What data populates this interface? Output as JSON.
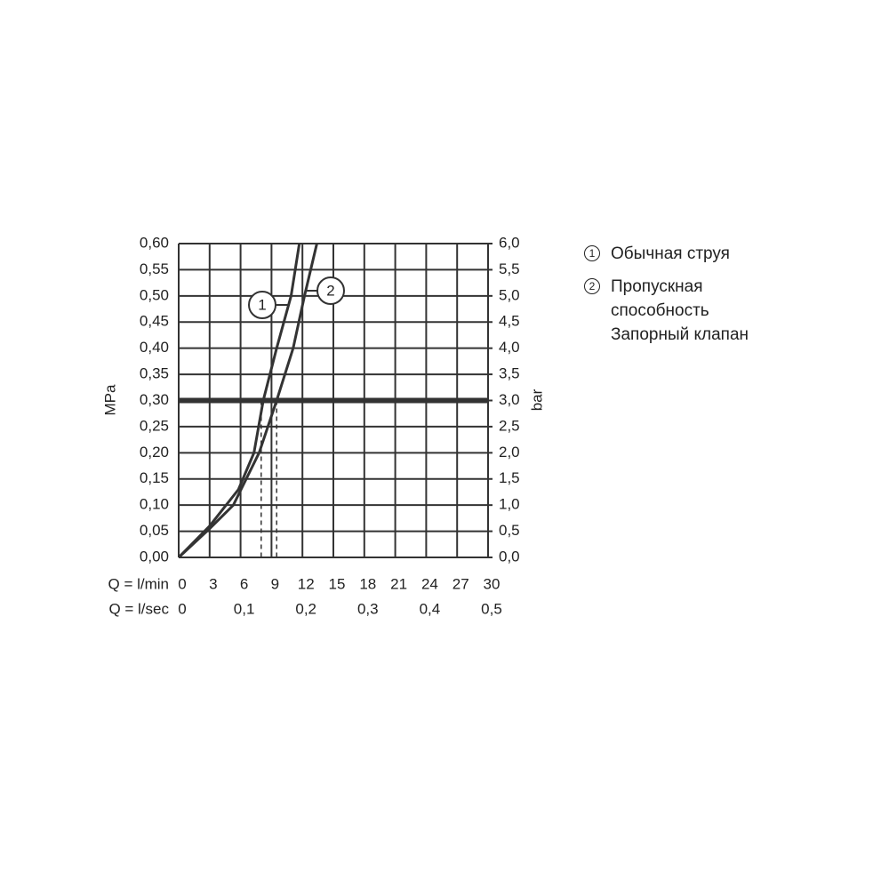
{
  "chart_data": {
    "type": "line",
    "xlabel": "Q = l/min",
    "x2label": "Q = l/sec",
    "ylabel": "MPa",
    "y2label": "bar",
    "xlim": [
      0,
      30
    ],
    "xticks": [
      0,
      3,
      6,
      9,
      12,
      15,
      18,
      21,
      24,
      27,
      30
    ],
    "x2lim": [
      0,
      0.5
    ],
    "x2ticks": [
      0,
      {
        "value": 0.1,
        "label": "0,1"
      },
      {
        "value": 0.2,
        "label": "0,2"
      },
      {
        "value": 0.3,
        "label": "0,3"
      },
      {
        "value": 0.4,
        "label": "0,4"
      },
      {
        "value": 0.5,
        "label": "0,5"
      }
    ],
    "ylim": [
      0,
      0.6
    ],
    "yticks": [
      {
        "value": 0,
        "label": "0,00"
      },
      {
        "value": 0.05,
        "label": "0,05"
      },
      {
        "value": 0.1,
        "label": "0,10"
      },
      {
        "value": 0.15,
        "label": "0,15"
      },
      {
        "value": 0.2,
        "label": "0,20"
      },
      {
        "value": 0.25,
        "label": "0,25"
      },
      {
        "value": 0.3,
        "label": "0,30"
      },
      {
        "value": 0.35,
        "label": "0,35"
      },
      {
        "value": 0.4,
        "label": "0,40"
      },
      {
        "value": 0.45,
        "label": "0,45"
      },
      {
        "value": 0.5,
        "label": "0,50"
      },
      {
        "value": 0.55,
        "label": "0,55"
      },
      {
        "value": 0.6,
        "label": "0,60"
      }
    ],
    "y2lim": [
      0,
      6
    ],
    "y2ticks": [
      {
        "value": 0,
        "label": "0,0"
      },
      {
        "value": 0.5,
        "label": "0,5"
      },
      {
        "value": 1,
        "label": "1,0"
      },
      {
        "value": 1.5,
        "label": "1,5"
      },
      {
        "value": 2,
        "label": "2,0"
      },
      {
        "value": 2.5,
        "label": "2,5"
      },
      {
        "value": 3,
        "label": "3,0"
      },
      {
        "value": 3.5,
        "label": "3,5"
      },
      {
        "value": 4,
        "label": "4,0"
      },
      {
        "value": 4.5,
        "label": "4,5"
      },
      {
        "value": 5,
        "label": "5,0"
      },
      {
        "value": 5.5,
        "label": "5,5"
      },
      {
        "value": 6,
        "label": "6,0"
      }
    ],
    "grid": true,
    "reference_y": 0.3,
    "reference_x": [
      8,
      9.5
    ],
    "series": [
      {
        "name": "Обычная струя",
        "label": "1",
        "color": "#333333",
        "x": [
          0,
          3,
          5.8,
          7.3,
          8.2,
          9.5,
          10.9,
          11.7
        ],
        "values": [
          0,
          0.06,
          0.13,
          0.2,
          0.3,
          0.4,
          0.5,
          0.6
        ]
      },
      {
        "name": "Пропускная способность Запорный клапан",
        "label": "2",
        "color": "#333333",
        "x": [
          0,
          3,
          5.3,
          7.8,
          9.5,
          11.1,
          12.2,
          13.4
        ],
        "values": [
          0,
          0.055,
          0.1,
          0.2,
          0.3,
          0.4,
          0.5,
          0.6
        ]
      }
    ]
  }
}
